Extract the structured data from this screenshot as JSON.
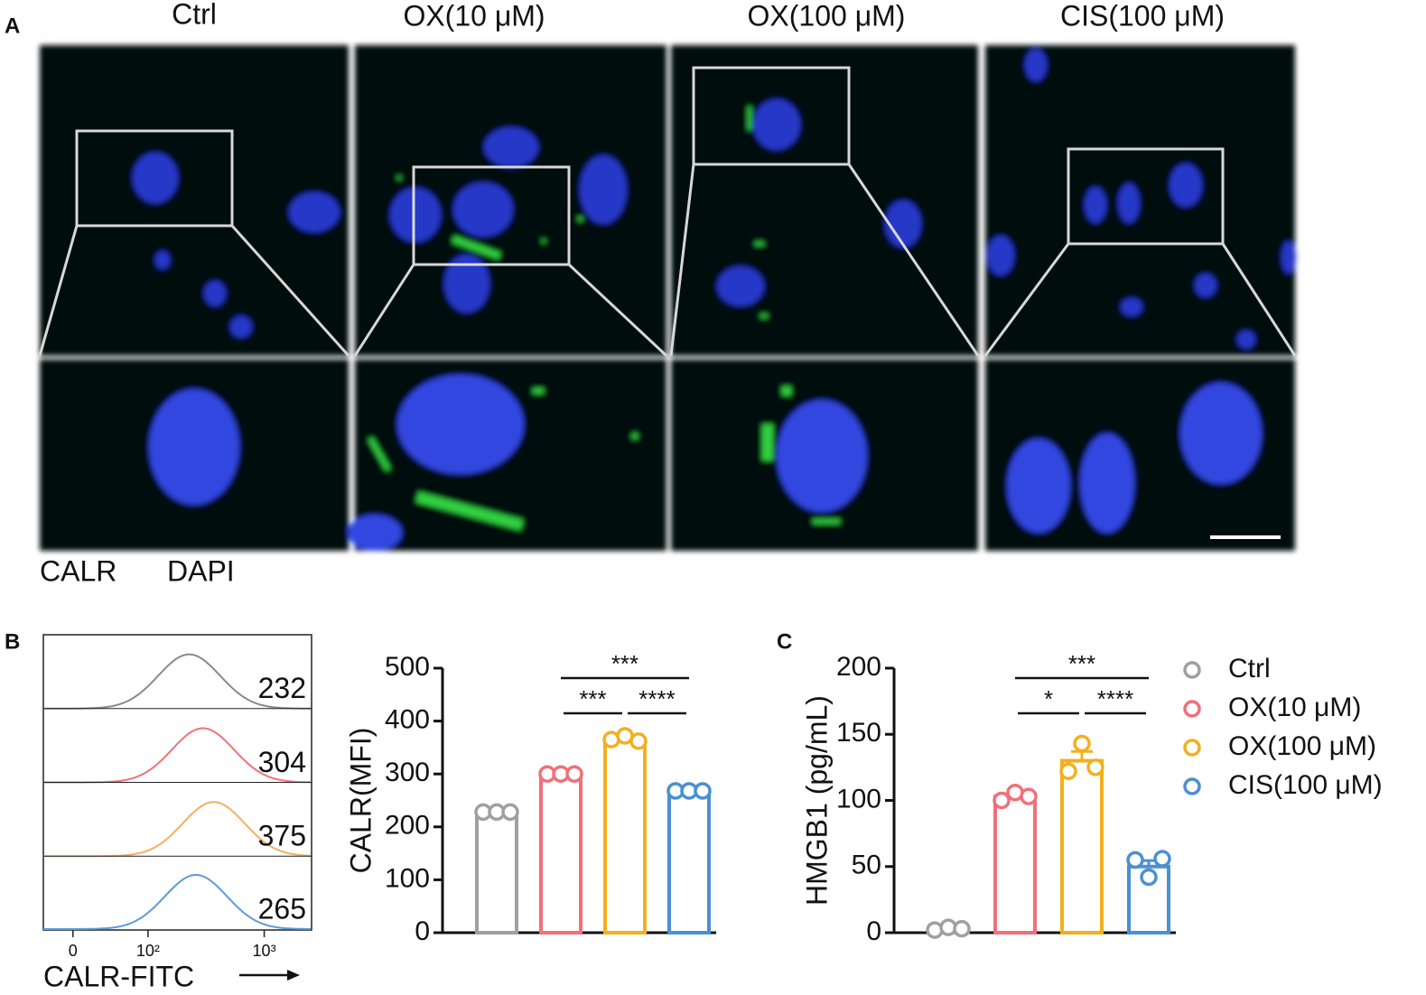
{
  "panel_a": {
    "label": "A",
    "conditions": [
      "Ctrl",
      "OX(10 μM)",
      "OX(100 μM)",
      "CIS(100 μM)"
    ],
    "channels": [
      {
        "name": "CALR",
        "color": "#3cb54a"
      },
      {
        "name": "DAPI",
        "color": "#3a3ad6"
      }
    ]
  },
  "chart_data": [
    {
      "type": "flow-histogram",
      "panel": "B",
      "xlabel": "CALR-FITC",
      "xscale": "biexponential",
      "xlim": [
        -30,
        2500
      ],
      "xticks": [
        {
          "value": 0,
          "label": "0"
        },
        {
          "value": 100,
          "label": "10²"
        },
        {
          "value": 1000,
          "label": "10³"
        }
      ],
      "series": [
        {
          "color": "#8a8a8a",
          "value": 232
        },
        {
          "color": "#f07278",
          "value": 304
        },
        {
          "color": "#f3b060",
          "value": 375
        },
        {
          "color": "#5a9bdc",
          "value": 265
        }
      ]
    },
    {
      "type": "bar",
      "ylabel": "CALR(MFI)",
      "ylim": [
        0,
        500
      ],
      "yticks": [
        0,
        100,
        200,
        300,
        400,
        500
      ],
      "groups": [
        {
          "color": "#a0a0a0",
          "mean": 228,
          "points": [
            228,
            228,
            228
          ]
        },
        {
          "color": "#f0707a",
          "mean": 300,
          "points": [
            300,
            300,
            300
          ]
        },
        {
          "color": "#f2b01e",
          "mean": 366,
          "points": [
            365,
            372,
            362
          ]
        },
        {
          "color": "#4a90d0",
          "mean": 268,
          "points": [
            268,
            268,
            268
          ]
        }
      ],
      "comparisons": [
        {
          "groups": [
            1,
            3
          ],
          "label": "***"
        },
        {
          "groups": [
            1,
            2
          ],
          "label": "***"
        },
        {
          "groups": [
            2,
            3
          ],
          "label": "****"
        }
      ]
    },
    {
      "type": "bar",
      "panel": "C",
      "ylabel": "HMGB1 (pg/mL)",
      "ylim": [
        0,
        200
      ],
      "yticks": [
        0,
        50,
        100,
        150,
        200
      ],
      "legend": "right",
      "groups": [
        {
          "name": "Ctrl",
          "color": "#a0a0a0",
          "mean": 3,
          "sem": 1,
          "points": [
            2,
            4,
            3
          ]
        },
        {
          "name": "OX(10 μM)",
          "color": "#f0707a",
          "mean": 103,
          "sem": 2,
          "points": [
            100,
            106,
            103
          ]
        },
        {
          "name": "OX(100 μM)",
          "color": "#f2b01e",
          "mean": 130,
          "sem": 7,
          "points": [
            122,
            143,
            125
          ]
        },
        {
          "name": "CIS(100 μM)",
          "color": "#4a90d0",
          "mean": 50,
          "sem": 4.5,
          "points": [
            55,
            42,
            56
          ]
        }
      ],
      "comparisons": [
        {
          "groups": [
            1,
            3
          ],
          "label": "***"
        },
        {
          "groups": [
            1,
            2
          ],
          "label": "*"
        },
        {
          "groups": [
            2,
            3
          ],
          "label": "****"
        }
      ]
    }
  ]
}
